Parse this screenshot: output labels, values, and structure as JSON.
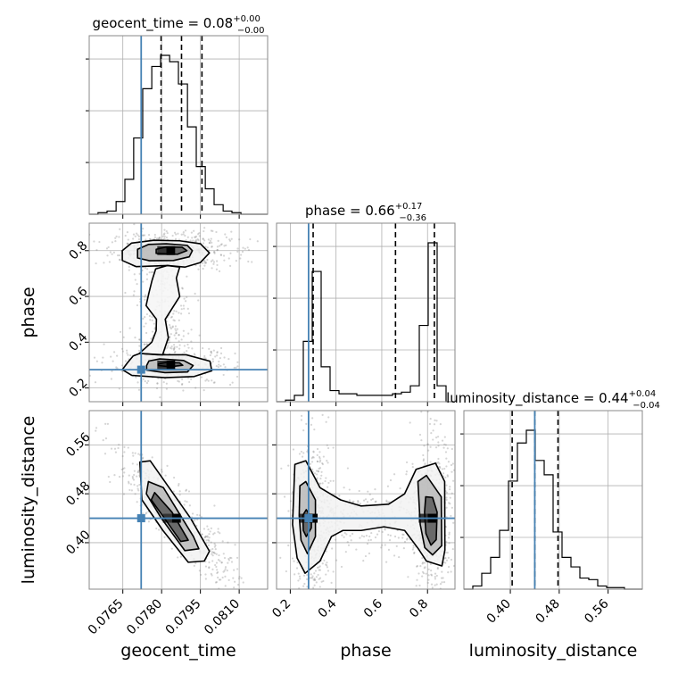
{
  "colors": {
    "truth": "#4682b4",
    "histogram": "#000000",
    "quantile": "#000000",
    "contour": "#000000",
    "grid": "#b0b0b0",
    "samples": "#888888"
  },
  "chart_data": {
    "type": "corner",
    "grid": true,
    "parameters": [
      {
        "label": "geocent_time",
        "title_main": "geocent_time = 0.08",
        "title_plus": "+0.00",
        "title_minus": "−0.00",
        "range": [
          0.0752,
          0.0821
        ],
        "ticks": [
          0.0765,
          0.078,
          0.0795,
          0.081
        ],
        "tick_labels": [
          "0.0765",
          "0.0780",
          "0.0795",
          "0.0810"
        ],
        "truth": 0.07721,
        "quantiles": [
          0.07798,
          0.07877,
          0.07956
        ],
        "hist_bin_edges": [
          0.0752,
          0.07554,
          0.07589,
          0.07624,
          0.07658,
          0.07692,
          0.07727,
          0.07762,
          0.07796,
          0.07831,
          0.07865,
          0.079,
          0.07934,
          0.07969,
          0.08003,
          0.08038,
          0.08072,
          0.08107,
          0.08141,
          0.08176,
          0.0821
        ],
        "hist_counts": [
          0.0,
          0.01,
          0.02,
          0.08,
          0.22,
          0.48,
          0.79,
          0.93,
          1.0,
          0.96,
          0.82,
          0.55,
          0.3,
          0.16,
          0.06,
          0.02,
          0.01,
          0.0,
          0.0,
          0.0
        ]
      },
      {
        "label": "phase",
        "title_main": "phase = 0.66",
        "title_plus": "+0.17",
        "title_minus": "−0.36",
        "range": [
          0.14,
          0.92
        ],
        "ticks": [
          0.2,
          0.4,
          0.6,
          0.8
        ],
        "tick_labels": [
          "0.2",
          "0.4",
          "0.6",
          "0.8"
        ],
        "truth": 0.28,
        "quantiles": [
          0.3,
          0.66,
          0.83
        ],
        "hist_bin_edges": [
          0.14,
          0.179,
          0.218,
          0.257,
          0.296,
          0.335,
          0.374,
          0.413,
          0.452,
          0.491,
          0.53,
          0.569,
          0.608,
          0.647,
          0.686,
          0.725,
          0.764,
          0.803,
          0.842,
          0.881,
          0.92
        ],
        "hist_counts": [
          0.0,
          0.01,
          0.04,
          0.38,
          0.82,
          0.22,
          0.07,
          0.05,
          0.05,
          0.04,
          0.04,
          0.04,
          0.04,
          0.05,
          0.06,
          0.1,
          0.48,
          1.0,
          0.1,
          0.0
        ]
      },
      {
        "label": "luminosity_distance",
        "title_main": "luminosity_distance = 0.44",
        "title_plus": "+0.04",
        "title_minus": "−0.04",
        "range": [
          0.324,
          0.616
        ],
        "ticks": [
          0.4,
          0.48,
          0.56
        ],
        "tick_labels": [
          "0.40",
          "0.48",
          "0.56"
        ],
        "truth": 0.44,
        "quantiles": [
          0.403,
          0.44,
          0.478
        ],
        "hist_bin_edges": [
          0.324,
          0.3386,
          0.3532,
          0.3678,
          0.3824,
          0.397,
          0.4116,
          0.4262,
          0.4408,
          0.4554,
          0.47,
          0.4846,
          0.4992,
          0.5138,
          0.5284,
          0.543,
          0.5576,
          0.5722,
          0.5868,
          0.6014,
          0.616
        ],
        "hist_counts": [
          0.0,
          0.02,
          0.1,
          0.2,
          0.37,
          0.68,
          0.92,
          1.0,
          0.81,
          0.72,
          0.36,
          0.2,
          0.14,
          0.07,
          0.06,
          0.02,
          0.01,
          0.01,
          0.0,
          0.0
        ]
      }
    ],
    "pairs": [
      {
        "x": "geocent_time",
        "y": "phase",
        "modes": [
          {
            "cx": 0.07835,
            "cy": 0.8,
            "sx": 0.00068,
            "sy": 0.025,
            "weight": 1.0
          },
          {
            "cx": 0.07835,
            "cy": 0.3,
            "sx": 0.00072,
            "sy": 0.025,
            "weight": 0.65
          }
        ],
        "contour_levels": [
          [
            [
              0.07648,
              0.757
            ],
            [
              0.07702,
              0.73
            ],
            [
              0.07822,
              0.735
            ],
            [
              0.0789,
              0.728
            ],
            [
              0.0795,
              0.748
            ],
            [
              0.07985,
              0.79
            ],
            [
              0.0795,
              0.83
            ],
            [
              0.0787,
              0.843
            ],
            [
              0.0777,
              0.845
            ],
            [
              0.07684,
              0.833
            ],
            [
              0.07648,
              0.8
            ],
            [
              0.07648,
              0.757
            ]
          ],
          [
            [
              0.07707,
              0.768
            ],
            [
              0.07753,
              0.756
            ],
            [
              0.07846,
              0.757
            ],
            [
              0.07907,
              0.773
            ],
            [
              0.07919,
              0.8
            ],
            [
              0.07899,
              0.823
            ],
            [
              0.07818,
              0.83
            ],
            [
              0.07749,
              0.827
            ],
            [
              0.07707,
              0.806
            ],
            [
              0.07707,
              0.768
            ]
          ],
          [
            [
              0.07779,
              0.788
            ],
            [
              0.07861,
              0.784
            ],
            [
              0.07898,
              0.8
            ],
            [
              0.07879,
              0.815
            ],
            [
              0.07817,
              0.816
            ],
            [
              0.07779,
              0.806
            ],
            [
              0.07779,
              0.788
            ]
          ],
          [
            [
              0.07648,
              0.28
            ],
            [
              0.07685,
              0.255
            ],
            [
              0.07813,
              0.245
            ],
            [
              0.07926,
              0.25
            ],
            [
              0.07994,
              0.275
            ],
            [
              0.07987,
              0.317
            ],
            [
              0.07895,
              0.345
            ],
            [
              0.07786,
              0.345
            ],
            [
              0.07716,
              0.351
            ],
            [
              0.0769,
              0.34
            ],
            [
              0.07668,
              0.31
            ],
            [
              0.07648,
              0.28
            ]
          ],
          [
            [
              0.07742,
              0.278
            ],
            [
              0.07813,
              0.267
            ],
            [
              0.079,
              0.27
            ],
            [
              0.07922,
              0.298
            ],
            [
              0.07885,
              0.32
            ],
            [
              0.07793,
              0.327
            ],
            [
              0.07751,
              0.318
            ],
            [
              0.07742,
              0.298
            ],
            [
              0.07742,
              0.278
            ]
          ],
          [
            [
              0.07787,
              0.298
            ],
            [
              0.07833,
              0.293
            ],
            [
              0.07882,
              0.299
            ],
            [
              0.07869,
              0.31
            ],
            [
              0.0782,
              0.312
            ],
            [
              0.07787,
              0.305
            ],
            [
              0.07787,
              0.298
            ]
          ]
        ],
        "bridge": [
          [
            0.07714,
            0.351
          ],
          [
            0.07804,
            0.345
          ],
          [
            0.07826,
            0.42
          ],
          [
            0.07814,
            0.5
          ],
          [
            0.0787,
            0.6
          ],
          [
            0.07857,
            0.68
          ],
          [
            0.0787,
            0.728
          ],
          [
            0.07822,
            0.735
          ],
          [
            0.07777,
            0.72
          ],
          [
            0.07763,
            0.67
          ],
          [
            0.07752,
            0.62
          ],
          [
            0.0774,
            0.56
          ],
          [
            0.0778,
            0.5
          ],
          [
            0.07779,
            0.45
          ],
          [
            0.07762,
            0.4
          ],
          [
            0.07714,
            0.351
          ]
        ]
      },
      {
        "x": "geocent_time",
        "y": "luminosity_distance",
        "modes": [
          {
            "cx": 0.07857,
            "cy": 0.44,
            "sx": 0.00072,
            "sy": 0.034,
            "weight": 1.0,
            "rho": -0.9
          }
        ],
        "contour_levels": [
          [
            [
              0.07716,
              0.532
            ],
            [
              0.07756,
              0.534
            ],
            [
              0.07912,
              0.44
            ],
            [
              0.07985,
              0.386
            ],
            [
              0.07965,
              0.37
            ],
            [
              0.07903,
              0.368
            ],
            [
              0.07805,
              0.42
            ],
            [
              0.07724,
              0.47
            ],
            [
              0.07716,
              0.53
            ]
          ],
          [
            [
              0.07749,
              0.5
            ],
            [
              0.07807,
              0.49
            ],
            [
              0.07923,
              0.41
            ],
            [
              0.07944,
              0.39
            ],
            [
              0.0789,
              0.387
            ],
            [
              0.07799,
              0.44
            ],
            [
              0.07741,
              0.48
            ],
            [
              0.07749,
              0.5
            ]
          ],
          [
            [
              0.07773,
              0.482
            ],
            [
              0.0784,
              0.45
            ],
            [
              0.07903,
              0.404
            ],
            [
              0.07874,
              0.402
            ],
            [
              0.07811,
              0.44
            ],
            [
              0.0776,
              0.47
            ],
            [
              0.07773,
              0.482
            ]
          ]
        ]
      },
      {
        "x": "phase",
        "y": "luminosity_distance",
        "modes": [
          {
            "cx": 0.3,
            "cy": 0.44,
            "sx": 0.027,
            "sy": 0.04,
            "weight": 0.8
          },
          {
            "cx": 0.82,
            "cy": 0.44,
            "sx": 0.027,
            "sy": 0.04,
            "weight": 1.0
          }
        ],
        "contour_levels": [
          [
            [
              0.22,
              0.528
            ],
            [
              0.268,
              0.534
            ],
            [
              0.33,
              0.49
            ],
            [
              0.42,
              0.47
            ],
            [
              0.51,
              0.46
            ],
            [
              0.63,
              0.463
            ],
            [
              0.7,
              0.48
            ],
            [
              0.75,
              0.52
            ],
            [
              0.835,
              0.53
            ],
            [
              0.875,
              0.5
            ],
            [
              0.876,
              0.388
            ],
            [
              0.863,
              0.362
            ],
            [
              0.795,
              0.37
            ],
            [
              0.76,
              0.39
            ],
            [
              0.7,
              0.42
            ],
            [
              0.61,
              0.426
            ],
            [
              0.51,
              0.42
            ],
            [
              0.43,
              0.42
            ],
            [
              0.38,
              0.41
            ],
            [
              0.33,
              0.37
            ],
            [
              0.265,
              0.35
            ],
            [
              0.23,
              0.375
            ],
            [
              0.21,
              0.43
            ],
            [
              0.22,
              0.528
            ]
          ],
          [
            [
              0.242,
              0.493
            ],
            [
              0.268,
              0.5
            ],
            [
              0.31,
              0.47
            ],
            [
              0.31,
              0.41
            ],
            [
              0.275,
              0.382
            ],
            [
              0.247,
              0.404
            ],
            [
              0.239,
              0.444
            ],
            [
              0.242,
              0.493
            ]
          ],
          [
            [
              0.255,
              0.445
            ],
            [
              0.27,
              0.454
            ],
            [
              0.293,
              0.44
            ],
            [
              0.292,
              0.424
            ],
            [
              0.27,
              0.41
            ],
            [
              0.257,
              0.42
            ],
            [
              0.255,
              0.445
            ]
          ],
          [
            [
              0.758,
              0.5
            ],
            [
              0.795,
              0.51
            ],
            [
              0.86,
              0.475
            ],
            [
              0.862,
              0.395
            ],
            [
              0.822,
              0.38
            ],
            [
              0.788,
              0.392
            ],
            [
              0.768,
              0.43
            ],
            [
              0.758,
              0.5
            ]
          ],
          [
            [
              0.792,
              0.475
            ],
            [
              0.822,
              0.474
            ],
            [
              0.842,
              0.45
            ],
            [
              0.838,
              0.405
            ],
            [
              0.815,
              0.396
            ],
            [
              0.793,
              0.415
            ],
            [
              0.787,
              0.45
            ],
            [
              0.792,
              0.475
            ]
          ]
        ]
      }
    ]
  }
}
